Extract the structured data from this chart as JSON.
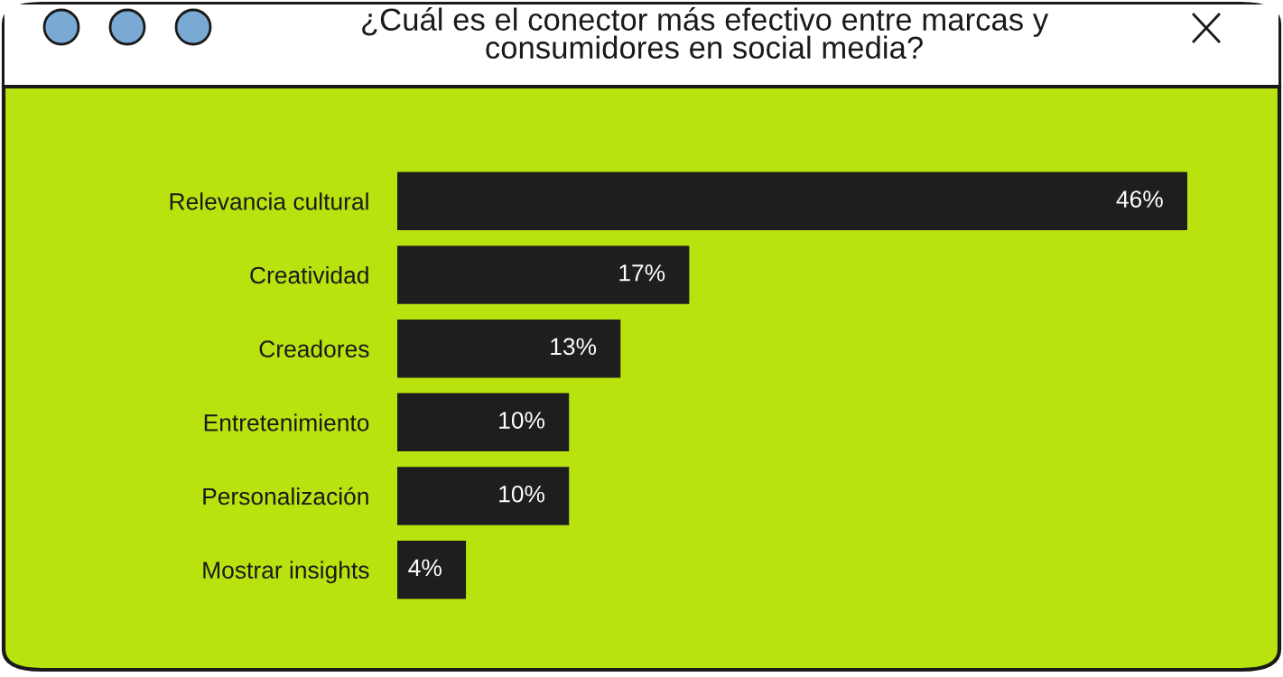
{
  "chart_data": {
    "type": "bar",
    "orientation": "horizontal",
    "title": "¿Cuál es el conector más efectivo entre marcas y\nconsumidores en social media?",
    "categories": [
      "Relevancia cultural",
      "Creatividad",
      "Creadores",
      "Entretenimiento",
      "Personalización",
      "Mostrar insights"
    ],
    "values": [
      46,
      17,
      13,
      10,
      10,
      4
    ],
    "value_labels": [
      "46%",
      "17%",
      "13%",
      "10%",
      "10%",
      "4%"
    ],
    "color": "#1e1e1e"
  }
}
